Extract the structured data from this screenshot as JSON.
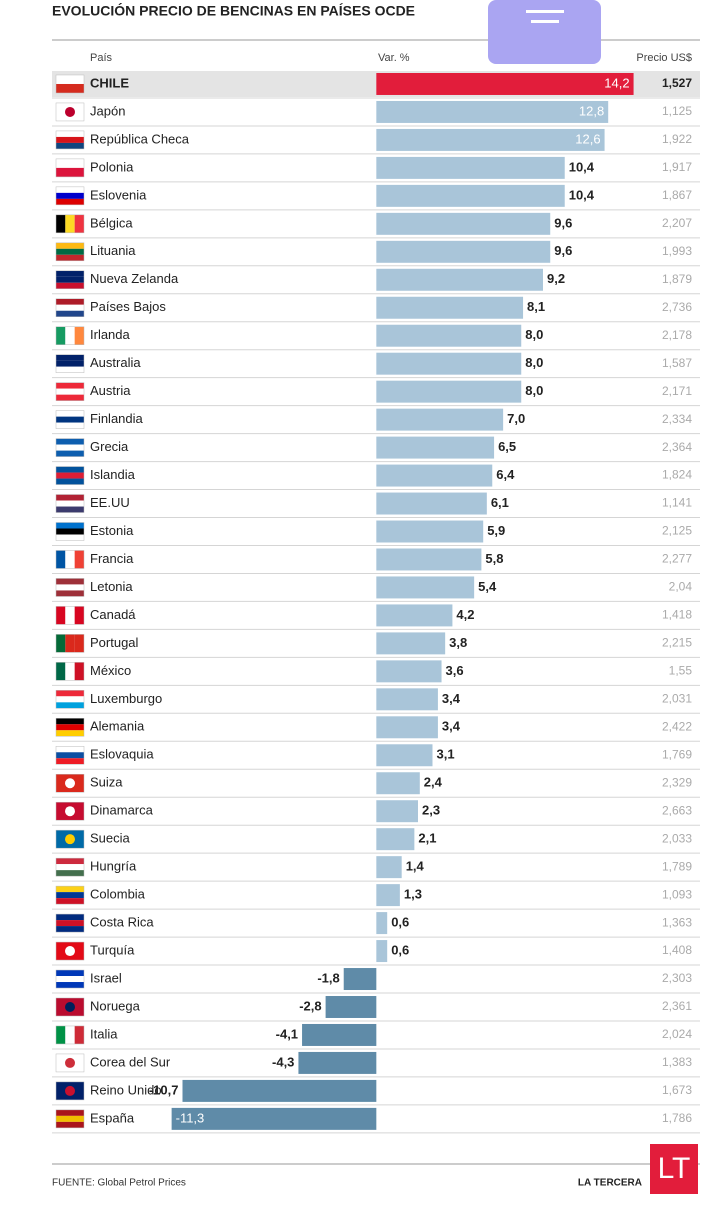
{
  "chart_data": {
    "type": "bar",
    "title": "EVOLUCIÓN PRECIO DE BENCINAS EN PAÍSES OCDE",
    "column_headers": [
      "País",
      "Var. %",
      "Precio US$"
    ],
    "categories": [
      "CHILE",
      "Japón",
      "República Checa",
      "Polonia",
      "Eslovenia",
      "Bélgica",
      "Lituania",
      "Nueva Zelanda",
      "Países Bajos",
      "Irlanda",
      "Australia",
      "Austria",
      "Finlandia",
      "Grecia",
      "Islandia",
      "EE.UU",
      "Estonia",
      "Francia",
      "Letonia",
      "Canadá",
      "Portugal",
      "México",
      "Luxemburgo",
      "Alemania",
      "Eslovaquia",
      "Suiza",
      "Dinamarca",
      "Suecia",
      "Hungría",
      "Colombia",
      "Costa Rica",
      "Turquía",
      "Israel",
      "Noruega",
      "Italia",
      "Corea del Sur",
      "Reino Unido",
      "España"
    ],
    "values": [
      14.2,
      12.8,
      12.6,
      10.4,
      10.4,
      9.6,
      9.6,
      9.2,
      8.1,
      8.0,
      8.0,
      8.0,
      7.0,
      6.5,
      6.4,
      6.1,
      5.9,
      5.8,
      5.4,
      4.2,
      3.8,
      3.6,
      3.4,
      3.4,
      3.1,
      2.4,
      2.3,
      2.1,
      1.4,
      1.3,
      0.6,
      0.6,
      -1.8,
      -2.8,
      -4.1,
      -4.3,
      -10.7,
      -11.3
    ],
    "value_labels": [
      "14,2",
      "12,8",
      "12,6",
      "10,4",
      "10,4",
      "9,6",
      "9,6",
      "9,2",
      "8,1",
      "8,0",
      "8,0",
      "8,0",
      "7,0",
      "6,5",
      "6,4",
      "6,1",
      "5,9",
      "5,8",
      "5,4",
      "4,2",
      "3,8",
      "3,6",
      "3,4",
      "3,4",
      "3,1",
      "2,4",
      "2,3",
      "2,1",
      "1,4",
      "1,3",
      "0,6",
      "0,6",
      "-1,8",
      "-2,8",
      "-4,1",
      "-4,3",
      "-10,7",
      "-11,3"
    ],
    "prices": [
      "1,527",
      "1,125",
      "1,922",
      "1,917",
      "1,867",
      "2,207",
      "1,993",
      "1,879",
      "2,736",
      "2,178",
      "1,587",
      "2,171",
      "2,334",
      "2,364",
      "1,824",
      "1,141",
      "2,125",
      "2,277",
      "2,04",
      "1,418",
      "2,215",
      "1,55",
      "2,031",
      "2,422",
      "1,769",
      "2,329",
      "2,663",
      "2,033",
      "1,789",
      "1,093",
      "1,363",
      "1,408",
      "2,303",
      "2,361",
      "2,024",
      "1,383",
      "1,673",
      "1,786"
    ],
    "xlim": [
      -11.5,
      14.5
    ],
    "colors": {
      "positive": "#a9c5d9",
      "negative": "#5f8ba8",
      "highlight": "#e21d3b"
    },
    "source": "FUENTE: Global Petrol Prices",
    "brand": "LA TERCERA",
    "logo": "LT"
  }
}
